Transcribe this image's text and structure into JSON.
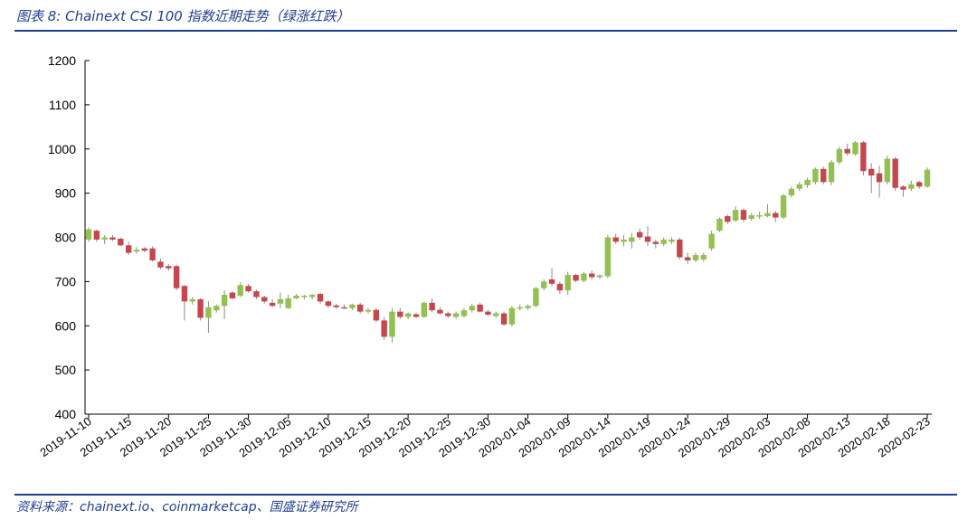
{
  "title": "图表 8: Chainext CSI 100 指数近期走势（绿涨红跌）",
  "source": "资料来源：chainext.io、coinmarketcap、国盛证券研究所",
  "colors": {
    "up": "#92c150",
    "down": "#c6464d",
    "axis": "#000000",
    "accent": "#1f3f8f"
  },
  "chart_data": {
    "type": "candlestick",
    "ylim": [
      400,
      1200
    ],
    "yticks": [
      400,
      500,
      600,
      700,
      800,
      900,
      1000,
      1100,
      1200
    ],
    "xticks": [
      "2019-11-10",
      "2019-11-15",
      "2019-11-20",
      "2019-11-25",
      "2019-11-30",
      "2019-12-05",
      "2019-12-10",
      "2019-12-15",
      "2019-12-20",
      "2019-12-25",
      "2019-12-30",
      "2020-01-04",
      "2020-01-09",
      "2020-01-14",
      "2020-01-19",
      "2020-01-24",
      "2020-01-29",
      "2020-02-03",
      "2020-02-08",
      "2020-02-13",
      "2020-02-18",
      "2020-02-23"
    ],
    "grid": false,
    "series": [
      {
        "date": "2019-11-10",
        "open": 795,
        "high": 822,
        "low": 790,
        "close": 818
      },
      {
        "date": "2019-11-11",
        "open": 815,
        "high": 818,
        "low": 790,
        "close": 795
      },
      {
        "date": "2019-11-12",
        "open": 795,
        "high": 805,
        "low": 785,
        "close": 800
      },
      {
        "date": "2019-11-13",
        "open": 800,
        "high": 805,
        "low": 792,
        "close": 795
      },
      {
        "date": "2019-11-14",
        "open": 797,
        "high": 800,
        "low": 780,
        "close": 782
      },
      {
        "date": "2019-11-15",
        "open": 782,
        "high": 790,
        "low": 760,
        "close": 765
      },
      {
        "date": "2019-11-16",
        "open": 768,
        "high": 778,
        "low": 764,
        "close": 772
      },
      {
        "date": "2019-11-17",
        "open": 775,
        "high": 778,
        "low": 766,
        "close": 770
      },
      {
        "date": "2019-11-18",
        "open": 775,
        "high": 780,
        "low": 745,
        "close": 748
      },
      {
        "date": "2019-11-19",
        "open": 745,
        "high": 752,
        "low": 728,
        "close": 732
      },
      {
        "date": "2019-11-20",
        "open": 735,
        "high": 740,
        "low": 724,
        "close": 730
      },
      {
        "date": "2019-11-21",
        "open": 735,
        "high": 738,
        "low": 680,
        "close": 685
      },
      {
        "date": "2019-11-22",
        "open": 690,
        "high": 692,
        "low": 612,
        "close": 655
      },
      {
        "date": "2019-11-23",
        "open": 655,
        "high": 665,
        "low": 648,
        "close": 660
      },
      {
        "date": "2019-11-24",
        "open": 660,
        "high": 662,
        "low": 612,
        "close": 618
      },
      {
        "date": "2019-11-25",
        "open": 618,
        "high": 655,
        "low": 584,
        "close": 642
      },
      {
        "date": "2019-11-26",
        "open": 635,
        "high": 648,
        "low": 630,
        "close": 645
      },
      {
        "date": "2019-11-27",
        "open": 645,
        "high": 680,
        "low": 615,
        "close": 670
      },
      {
        "date": "2019-11-28",
        "open": 675,
        "high": 678,
        "low": 660,
        "close": 662
      },
      {
        "date": "2019-11-29",
        "open": 668,
        "high": 698,
        "low": 665,
        "close": 692
      },
      {
        "date": "2019-11-30",
        "open": 690,
        "high": 695,
        "low": 675,
        "close": 678
      },
      {
        "date": "2019-12-01",
        "open": 678,
        "high": 682,
        "low": 660,
        "close": 665
      },
      {
        "date": "2019-12-02",
        "open": 665,
        "high": 668,
        "low": 650,
        "close": 655
      },
      {
        "date": "2019-12-03",
        "open": 652,
        "high": 660,
        "low": 642,
        "close": 645
      },
      {
        "date": "2019-12-04",
        "open": 650,
        "high": 675,
        "low": 640,
        "close": 660
      },
      {
        "date": "2019-12-05",
        "open": 640,
        "high": 670,
        "low": 638,
        "close": 662
      },
      {
        "date": "2019-12-06",
        "open": 662,
        "high": 672,
        "low": 660,
        "close": 668
      },
      {
        "date": "2019-12-07",
        "open": 665,
        "high": 670,
        "low": 660,
        "close": 668
      },
      {
        "date": "2019-12-08",
        "open": 665,
        "high": 672,
        "low": 660,
        "close": 670
      },
      {
        "date": "2019-12-09",
        "open": 672,
        "high": 675,
        "low": 650,
        "close": 655
      },
      {
        "date": "2019-12-10",
        "open": 655,
        "high": 658,
        "low": 640,
        "close": 645
      },
      {
        "date": "2019-12-11",
        "open": 646,
        "high": 650,
        "low": 638,
        "close": 642
      },
      {
        "date": "2019-12-12",
        "open": 642,
        "high": 648,
        "low": 638,
        "close": 640
      },
      {
        "date": "2019-12-13",
        "open": 640,
        "high": 650,
        "low": 635,
        "close": 648
      },
      {
        "date": "2019-12-14",
        "open": 648,
        "high": 652,
        "low": 628,
        "close": 632
      },
      {
        "date": "2019-12-15",
        "open": 632,
        "high": 640,
        "low": 628,
        "close": 636
      },
      {
        "date": "2019-12-16",
        "open": 636,
        "high": 640,
        "low": 608,
        "close": 612
      },
      {
        "date": "2019-12-17",
        "open": 612,
        "high": 620,
        "low": 568,
        "close": 575
      },
      {
        "date": "2019-12-18",
        "open": 575,
        "high": 640,
        "low": 562,
        "close": 632
      },
      {
        "date": "2019-12-19",
        "open": 632,
        "high": 640,
        "low": 615,
        "close": 620
      },
      {
        "date": "2019-12-20",
        "open": 620,
        "high": 630,
        "low": 615,
        "close": 628
      },
      {
        "date": "2019-12-21",
        "open": 626,
        "high": 630,
        "low": 618,
        "close": 620
      },
      {
        "date": "2019-12-22",
        "open": 620,
        "high": 655,
        "low": 618,
        "close": 652
      },
      {
        "date": "2019-12-23",
        "open": 652,
        "high": 662,
        "low": 630,
        "close": 635
      },
      {
        "date": "2019-12-24",
        "open": 636,
        "high": 642,
        "low": 625,
        "close": 628
      },
      {
        "date": "2019-12-25",
        "open": 628,
        "high": 632,
        "low": 618,
        "close": 622
      },
      {
        "date": "2019-12-26",
        "open": 620,
        "high": 632,
        "low": 616,
        "close": 628
      },
      {
        "date": "2019-12-27",
        "open": 622,
        "high": 640,
        "low": 618,
        "close": 635
      },
      {
        "date": "2019-12-28",
        "open": 635,
        "high": 650,
        "low": 630,
        "close": 645
      },
      {
        "date": "2019-12-29",
        "open": 648,
        "high": 652,
        "low": 630,
        "close": 632
      },
      {
        "date": "2019-12-30",
        "open": 632,
        "high": 636,
        "low": 622,
        "close": 625
      },
      {
        "date": "2019-12-31",
        "open": 622,
        "high": 632,
        "low": 618,
        "close": 628
      },
      {
        "date": "2020-01-01",
        "open": 628,
        "high": 632,
        "low": 600,
        "close": 603
      },
      {
        "date": "2020-01-02",
        "open": 603,
        "high": 645,
        "low": 598,
        "close": 640
      },
      {
        "date": "2020-01-03",
        "open": 640,
        "high": 648,
        "low": 635,
        "close": 642
      },
      {
        "date": "2020-01-04",
        "open": 640,
        "high": 648,
        "low": 636,
        "close": 645
      },
      {
        "date": "2020-01-05",
        "open": 645,
        "high": 688,
        "low": 642,
        "close": 685
      },
      {
        "date": "2020-01-06",
        "open": 685,
        "high": 705,
        "low": 680,
        "close": 700
      },
      {
        "date": "2020-01-07",
        "open": 705,
        "high": 730,
        "low": 690,
        "close": 695
      },
      {
        "date": "2020-01-08",
        "open": 695,
        "high": 700,
        "low": 672,
        "close": 680
      },
      {
        "date": "2020-01-09",
        "open": 680,
        "high": 722,
        "low": 670,
        "close": 715
      },
      {
        "date": "2020-01-10",
        "open": 715,
        "high": 718,
        "low": 698,
        "close": 702
      },
      {
        "date": "2020-01-11",
        "open": 702,
        "high": 722,
        "low": 698,
        "close": 718
      },
      {
        "date": "2020-01-12",
        "open": 718,
        "high": 725,
        "low": 705,
        "close": 710
      },
      {
        "date": "2020-01-13",
        "open": 710,
        "high": 716,
        "low": 706,
        "close": 714
      },
      {
        "date": "2020-01-14",
        "open": 712,
        "high": 805,
        "low": 708,
        "close": 800
      },
      {
        "date": "2020-01-15",
        "open": 800,
        "high": 808,
        "low": 785,
        "close": 790
      },
      {
        "date": "2020-01-16",
        "open": 790,
        "high": 805,
        "low": 780,
        "close": 795
      },
      {
        "date": "2020-01-17",
        "open": 790,
        "high": 810,
        "low": 775,
        "close": 800
      },
      {
        "date": "2020-01-18",
        "open": 812,
        "high": 820,
        "low": 795,
        "close": 800
      },
      {
        "date": "2020-01-19",
        "open": 802,
        "high": 825,
        "low": 780,
        "close": 790
      },
      {
        "date": "2020-01-20",
        "open": 790,
        "high": 795,
        "low": 775,
        "close": 785
      },
      {
        "date": "2020-01-21",
        "open": 785,
        "high": 800,
        "low": 780,
        "close": 795
      },
      {
        "date": "2020-01-22",
        "open": 790,
        "high": 800,
        "low": 785,
        "close": 795
      },
      {
        "date": "2020-01-23",
        "open": 795,
        "high": 800,
        "low": 750,
        "close": 755
      },
      {
        "date": "2020-01-24",
        "open": 755,
        "high": 765,
        "low": 740,
        "close": 748
      },
      {
        "date": "2020-01-25",
        "open": 748,
        "high": 765,
        "low": 744,
        "close": 760
      },
      {
        "date": "2020-01-26",
        "open": 750,
        "high": 765,
        "low": 745,
        "close": 760
      },
      {
        "date": "2020-01-27",
        "open": 775,
        "high": 815,
        "low": 770,
        "close": 808
      },
      {
        "date": "2020-01-28",
        "open": 815,
        "high": 845,
        "low": 812,
        "close": 842
      },
      {
        "date": "2020-01-29",
        "open": 848,
        "high": 852,
        "low": 830,
        "close": 835
      },
      {
        "date": "2020-01-30",
        "open": 838,
        "high": 870,
        "low": 835,
        "close": 862
      },
      {
        "date": "2020-01-31",
        "open": 862,
        "high": 865,
        "low": 835,
        "close": 840
      },
      {
        "date": "2020-02-01",
        "open": 842,
        "high": 855,
        "low": 838,
        "close": 850
      },
      {
        "date": "2020-02-02",
        "open": 848,
        "high": 858,
        "low": 842,
        "close": 850
      },
      {
        "date": "2020-02-03",
        "open": 848,
        "high": 875,
        "low": 845,
        "close": 855
      },
      {
        "date": "2020-02-04",
        "open": 855,
        "high": 860,
        "low": 835,
        "close": 845
      },
      {
        "date": "2020-02-05",
        "open": 845,
        "high": 898,
        "low": 842,
        "close": 895
      },
      {
        "date": "2020-02-06",
        "open": 895,
        "high": 915,
        "low": 890,
        "close": 910
      },
      {
        "date": "2020-02-07",
        "open": 910,
        "high": 925,
        "low": 905,
        "close": 920
      },
      {
        "date": "2020-02-08",
        "open": 918,
        "high": 935,
        "low": 912,
        "close": 930
      },
      {
        "date": "2020-02-09",
        "open": 925,
        "high": 958,
        "low": 920,
        "close": 955
      },
      {
        "date": "2020-02-10",
        "open": 955,
        "high": 960,
        "low": 920,
        "close": 925
      },
      {
        "date": "2020-02-11",
        "open": 925,
        "high": 975,
        "low": 918,
        "close": 970
      },
      {
        "date": "2020-02-12",
        "open": 970,
        "high": 1005,
        "low": 965,
        "close": 1000
      },
      {
        "date": "2020-02-13",
        "open": 1000,
        "high": 1012,
        "low": 985,
        "close": 990
      },
      {
        "date": "2020-02-14",
        "open": 988,
        "high": 1018,
        "low": 985,
        "close": 1015
      },
      {
        "date": "2020-02-15",
        "open": 1015,
        "high": 1018,
        "low": 940,
        "close": 950
      },
      {
        "date": "2020-02-16",
        "open": 955,
        "high": 968,
        "low": 900,
        "close": 940
      },
      {
        "date": "2020-02-17",
        "open": 945,
        "high": 962,
        "low": 890,
        "close": 925
      },
      {
        "date": "2020-02-18",
        "open": 925,
        "high": 985,
        "low": 920,
        "close": 978
      },
      {
        "date": "2020-02-19",
        "open": 978,
        "high": 982,
        "low": 905,
        "close": 912
      },
      {
        "date": "2020-02-20",
        "open": 915,
        "high": 918,
        "low": 892,
        "close": 908
      },
      {
        "date": "2020-02-21",
        "open": 910,
        "high": 928,
        "low": 905,
        "close": 920
      },
      {
        "date": "2020-02-22",
        "open": 925,
        "high": 928,
        "low": 910,
        "close": 915
      },
      {
        "date": "2020-02-23",
        "open": 915,
        "high": 958,
        "low": 912,
        "close": 953
      }
    ]
  }
}
